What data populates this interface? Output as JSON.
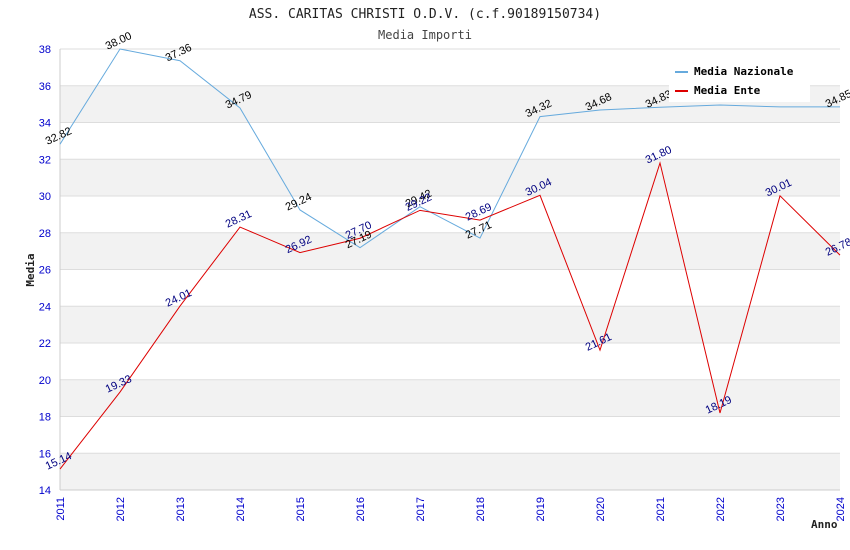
{
  "chart_data": {
    "type": "line",
    "title": "ASS. CARITAS CHRISTI O.D.V. (c.f.90189150734)",
    "subtitle": "Media Importi",
    "xlabel": "Anno",
    "ylabel": "Media",
    "ylim": [
      14,
      38
    ],
    "yticks": [
      "14",
      "16",
      "18",
      "20",
      "22",
      "24",
      "26",
      "28",
      "30",
      "32",
      "34",
      "36",
      "38"
    ],
    "categories": [
      "2011",
      "2012",
      "2013",
      "2014",
      "2015",
      "2016",
      "2017",
      "2018",
      "2019",
      "2020",
      "2021",
      "2022",
      "2023",
      "2024"
    ],
    "legend_position": "top-right",
    "series": [
      {
        "name": "Media Nazionale",
        "color": "#66aadd",
        "values": [
          32.82,
          38.0,
          37.36,
          34.79,
          29.24,
          27.19,
          29.42,
          27.71,
          34.32,
          34.68,
          34.83,
          34.95,
          34.85,
          34.85
        ],
        "labels": [
          "32.82",
          "38.00",
          "37.36",
          "34.79",
          "29.24",
          "27.19",
          "29.42",
          "27.71",
          "34.32",
          "34.68",
          "34.83",
          "",
          "",
          "34.85"
        ]
      },
      {
        "name": "Media Ente",
        "color": "#dd0000",
        "values": [
          15.14,
          19.33,
          24.01,
          28.31,
          26.92,
          27.7,
          29.22,
          28.69,
          30.04,
          21.61,
          31.8,
          18.19,
          30.01,
          26.78
        ],
        "labels": [
          "15.14",
          "19.33",
          "24.01",
          "28.31",
          "26.92",
          "27.70",
          "29.22",
          "28.69",
          "30.04",
          "21.61",
          "31.80",
          "18.19",
          "30.01",
          "26.78"
        ]
      }
    ]
  }
}
